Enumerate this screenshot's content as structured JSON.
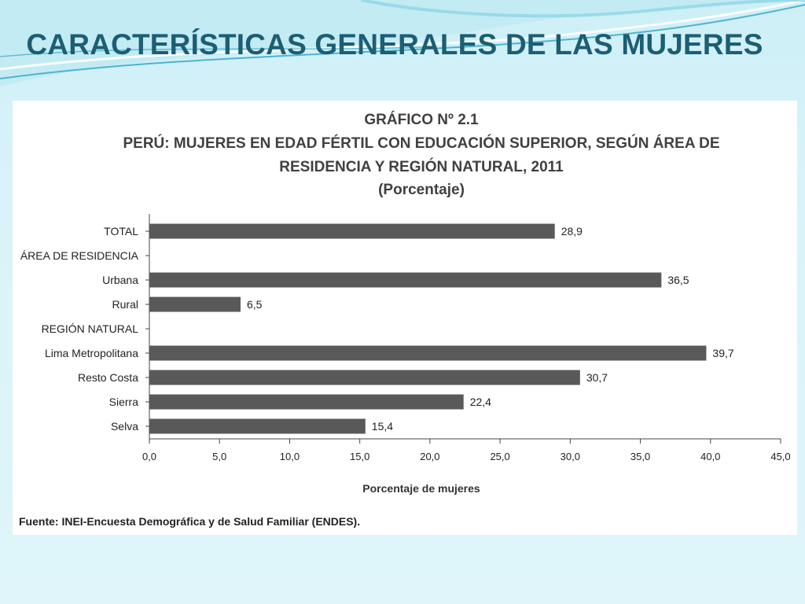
{
  "slide": {
    "title": "CARACTERÍSTICAS GENERALES DE LAS MUJERES"
  },
  "chart_data": {
    "type": "bar",
    "orientation": "horizontal",
    "title_lines": [
      "GRÁFICO Nº 2.1",
      "PERÚ: MUJERES EN EDAD FÉRTIL CON EDUCACIÓN SUPERIOR, SEGÚN ÁREA DE",
      "RESIDENCIA Y REGIÓN NATURAL, 2011",
      "(Porcentaje)"
    ],
    "categories": [
      "TOTAL",
      "ÁREA DE RESIDENCIA",
      "Urbana",
      "Rural",
      "REGIÓN NATURAL",
      "Lima Metropolitana",
      "Resto Costa",
      "Sierra",
      "Selva"
    ],
    "values": [
      28.9,
      null,
      36.5,
      6.5,
      null,
      39.7,
      30.7,
      22.4,
      15.4
    ],
    "value_labels": [
      "28,9",
      "",
      "36,5",
      "6,5",
      "",
      "39,7",
      "30,7",
      "22,4",
      "15,4"
    ],
    "xlim": [
      0,
      45
    ],
    "xticks": [
      "0,0",
      "5,0",
      "10,0",
      "15,0",
      "20,0",
      "25,0",
      "30,0",
      "35,0",
      "40,0",
      "45,0"
    ],
    "xlabel": "Porcentaje de mujeres",
    "ylabel": "",
    "grid": false,
    "bar_color": "#595959",
    "source": "Fuente: INEI-Encuesta Demográfica y de Salud Familiar (ENDES)."
  }
}
